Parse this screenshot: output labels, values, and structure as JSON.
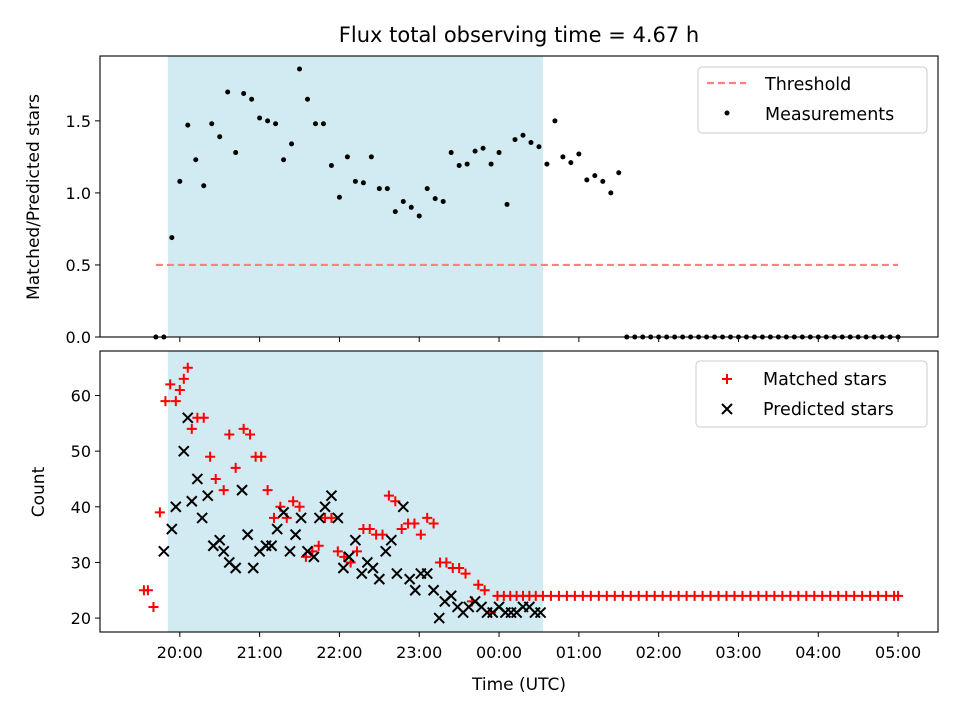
{
  "title": "Flux total observing time = 4.67 h",
  "colors": {
    "observing_span": "#add8e6",
    "threshold": "#ff7f7f",
    "measurements": "#000000",
    "matched": "#ff0000",
    "predicted": "#000000"
  },
  "chart_data": [
    {
      "type": "scatter",
      "xlabel": "",
      "ylabel": "Matched/Predicted stars",
      "xlim": [
        -1.0,
        9.5
      ],
      "ylim": [
        0,
        1.95
      ],
      "yticks": [
        0.0,
        0.5,
        1.0,
        1.5
      ],
      "ytick_labels": [
        "0.0",
        "0.5",
        "1.0",
        "1.5"
      ],
      "xticks": [
        0,
        1,
        2,
        3,
        4,
        5,
        6,
        7,
        8,
        9
      ],
      "grid": false,
      "legend_position": "top-right",
      "observing_span": [
        -0.15,
        4.55
      ],
      "threshold": {
        "name": "Threshold",
        "value": 0.5,
        "x": [
          -0.3,
          9.0
        ]
      },
      "series": [
        {
          "name": "Measurements",
          "x": [
            -0.3,
            -0.2,
            -0.1,
            0.0,
            0.1,
            0.2,
            0.3,
            0.4,
            0.5,
            0.6,
            0.7,
            0.8,
            0.9,
            1.0,
            1.1,
            1.2,
            1.3,
            1.4,
            1.5,
            1.6,
            1.7,
            1.8,
            1.9,
            2.0,
            2.1,
            2.2,
            2.3,
            2.4,
            2.5,
            2.6,
            2.7,
            2.8,
            2.9,
            3.0,
            3.1,
            3.2,
            3.3,
            3.4,
            3.5,
            3.6,
            3.7,
            3.8,
            3.9,
            4.0,
            4.1,
            4.2,
            4.3,
            4.4,
            4.5,
            4.6,
            4.7,
            4.8,
            4.9,
            5.0,
            5.1,
            5.2,
            5.3,
            5.4,
            5.5,
            5.6,
            5.7,
            5.8,
            5.9,
            6.0,
            6.1,
            6.2,
            6.3,
            6.4,
            6.5,
            6.6,
            6.7,
            6.8,
            6.9,
            7.0,
            7.1,
            7.2,
            7.3,
            7.4,
            7.5,
            7.6,
            7.7,
            7.8,
            7.9,
            8.0,
            8.1,
            8.2,
            8.3,
            8.4,
            8.5,
            8.6,
            8.7,
            8.8,
            8.9,
            9.0
          ],
          "y": [
            0.0,
            0.0,
            0.69,
            1.08,
            1.47,
            1.23,
            1.05,
            1.48,
            1.39,
            1.7,
            1.28,
            1.69,
            1.65,
            1.52,
            1.5,
            1.48,
            1.23,
            1.34,
            1.86,
            1.65,
            1.48,
            1.48,
            1.19,
            0.97,
            1.25,
            1.08,
            1.07,
            1.25,
            1.03,
            1.03,
            0.87,
            0.94,
            0.9,
            0.84,
            1.03,
            0.96,
            0.94,
            1.28,
            1.19,
            1.2,
            1.29,
            1.31,
            1.2,
            1.28,
            0.92,
            1.37,
            1.4,
            1.35,
            1.32,
            1.2,
            1.5,
            1.25,
            1.21,
            1.27,
            1.09,
            1.12,
            1.08,
            1.0,
            1.14,
            0.0,
            0.0,
            0.0,
            0.0,
            0.0,
            0.0,
            0.0,
            0.0,
            0.0,
            0.0,
            0.0,
            0.0,
            0.0,
            0.0,
            0.0,
            0.0,
            0.0,
            0.0,
            0.0,
            0.0,
            0.0,
            0.0,
            0.0,
            0.0,
            0.0,
            0.0,
            0.0,
            0.0,
            0.0,
            0.0,
            0.0,
            0.0,
            0.0,
            0.0,
            0.0
          ]
        }
      ]
    },
    {
      "type": "scatter",
      "xlabel": "Time (UTC)",
      "ylabel": "Count",
      "xlim": [
        -1.0,
        9.5
      ],
      "ylim": [
        17.5,
        68
      ],
      "yticks": [
        20,
        30,
        40,
        50,
        60
      ],
      "ytick_labels": [
        "20",
        "30",
        "40",
        "50",
        "60"
      ],
      "xticks": [
        0,
        1,
        2,
        3,
        4,
        5,
        6,
        7,
        8,
        9
      ],
      "xtick_labels": [
        "20:00",
        "21:00",
        "22:00",
        "23:00",
        "00:00",
        "01:00",
        "02:00",
        "03:00",
        "04:00",
        "05:00"
      ],
      "grid": false,
      "legend_position": "top-right",
      "observing_span": [
        -0.15,
        4.55
      ],
      "series": [
        {
          "name": "Matched stars",
          "marker": "+",
          "x": [
            -0.45,
            -0.4,
            -0.33,
            -0.25,
            -0.18,
            -0.12,
            -0.05,
            0.0,
            0.05,
            0.1,
            0.15,
            0.22,
            0.3,
            0.38,
            0.45,
            0.55,
            0.62,
            0.7,
            0.8,
            0.88,
            0.95,
            1.02,
            1.1,
            1.18,
            1.26,
            1.34,
            1.42,
            1.5,
            1.58,
            1.66,
            1.74,
            1.82,
            1.9,
            1.98,
            2.06,
            2.14,
            2.22,
            2.3,
            2.38,
            2.46,
            2.54,
            2.62,
            2.7,
            2.78,
            2.86,
            2.94,
            3.02,
            3.1,
            3.18,
            3.26,
            3.34,
            3.42,
            3.5,
            3.58,
            3.66,
            3.74,
            3.82,
            3.9,
            3.98,
            4.06,
            4.14,
            4.22,
            4.3,
            4.38,
            4.46,
            4.55,
            4.65,
            4.75,
            4.85,
            4.95,
            5.05,
            5.15,
            5.25,
            5.35,
            5.45,
            5.55,
            5.65,
            5.75,
            5.85,
            5.95,
            6.05,
            6.15,
            6.25,
            6.35,
            6.45,
            6.55,
            6.65,
            6.75,
            6.85,
            6.95,
            7.05,
            7.15,
            7.25,
            7.35,
            7.45,
            7.55,
            7.65,
            7.75,
            7.85,
            7.95,
            8.05,
            8.15,
            8.25,
            8.35,
            8.45,
            8.55,
            8.65,
            8.75,
            8.85,
            8.95,
            9.0
          ],
          "y": [
            25,
            25,
            22,
            39,
            59,
            62,
            59,
            61,
            63,
            65,
            54,
            56,
            56,
            49,
            45,
            43,
            53,
            47,
            54,
            53,
            49,
            49,
            43,
            38,
            40,
            38,
            41,
            40,
            31,
            32,
            33,
            38,
            38,
            32,
            31,
            30,
            32,
            36,
            36,
            35,
            35,
            42,
            41,
            36,
            37,
            37,
            35,
            38,
            37,
            30,
            30,
            29,
            29,
            28,
            23,
            26,
            25,
            21,
            24,
            24,
            24,
            24,
            24,
            24,
            24,
            24,
            24,
            24,
            24,
            24,
            24,
            24,
            24,
            24,
            24,
            24,
            24,
            24,
            24,
            24,
            24,
            24,
            24,
            24,
            24,
            24,
            24,
            24,
            24,
            24,
            24,
            24,
            24,
            24,
            24,
            24,
            24,
            24,
            24,
            24,
            24,
            24,
            24,
            24,
            24,
            24,
            24,
            24,
            24,
            24,
            24
          ]
        },
        {
          "name": "Predicted stars",
          "marker": "x",
          "x": [
            -0.2,
            -0.1,
            -0.05,
            0.05,
            0.1,
            0.15,
            0.22,
            0.28,
            0.35,
            0.42,
            0.5,
            0.55,
            0.62,
            0.7,
            0.78,
            0.85,
            0.92,
            1.0,
            1.08,
            1.15,
            1.22,
            1.3,
            1.38,
            1.45,
            1.52,
            1.6,
            1.68,
            1.75,
            1.82,
            1.9,
            1.98,
            2.05,
            2.12,
            2.2,
            2.28,
            2.35,
            2.42,
            2.5,
            2.58,
            2.65,
            2.72,
            2.8,
            2.88,
            2.95,
            3.02,
            3.1,
            3.18,
            3.25,
            3.32,
            3.4,
            3.48,
            3.55,
            3.62,
            3.7,
            3.78,
            3.85,
            3.92,
            4.0,
            4.08,
            4.15,
            4.22,
            4.3,
            4.38,
            4.45,
            4.52
          ],
          "y": [
            32,
            36,
            40,
            50,
            56,
            41,
            45,
            38,
            42,
            33,
            34,
            32,
            30,
            29,
            43,
            35,
            29,
            32,
            33,
            33,
            36,
            39,
            32,
            35,
            38,
            32,
            31,
            38,
            40,
            42,
            38,
            29,
            31,
            34,
            28,
            30,
            29,
            27,
            32,
            34,
            28,
            40,
            27,
            25,
            28,
            28,
            25,
            20,
            23,
            24,
            22,
            21,
            22,
            23,
            22,
            21,
            21,
            22,
            21,
            21,
            21,
            22,
            22,
            21,
            21
          ]
        }
      ]
    }
  ]
}
